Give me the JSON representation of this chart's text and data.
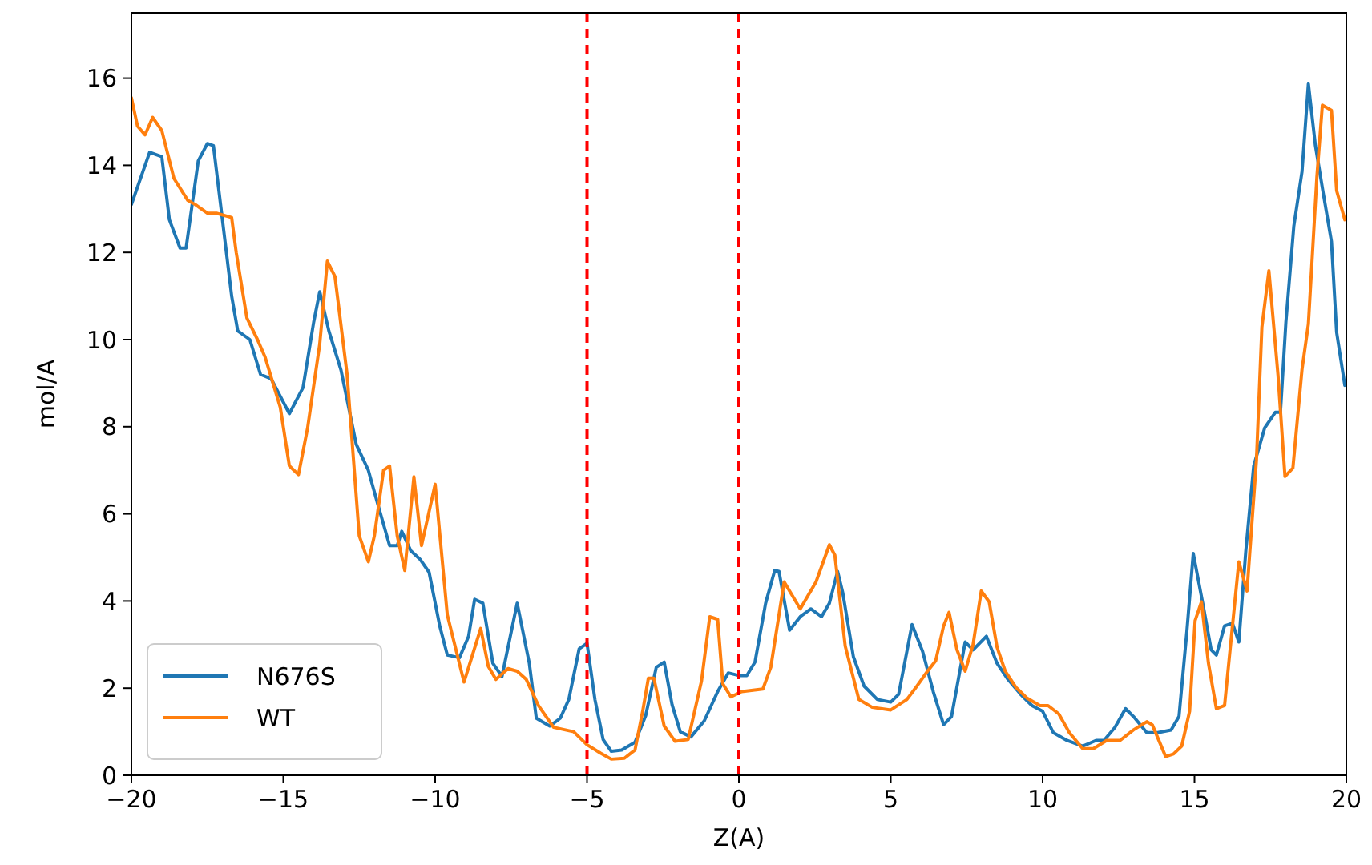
{
  "chart_data": {
    "type": "line",
    "xlabel": "Z(A)",
    "ylabel": "mol/A",
    "xlim": [
      -20,
      20
    ],
    "ylim": [
      0,
      17.5
    ],
    "xticks": [
      {
        "value": -20,
        "label": "−20"
      },
      {
        "value": -15,
        "label": "−15"
      },
      {
        "value": -10,
        "label": "−10"
      },
      {
        "value": -5,
        "label": "−5"
      },
      0,
      5,
      10,
      15,
      20
    ],
    "yticks": [
      0,
      2,
      4,
      6,
      8,
      10,
      12,
      14,
      16
    ],
    "grid": false,
    "legend": "bottom left",
    "marker": "none",
    "line_style": "solid",
    "ref_lines": [
      {
        "axis": "x",
        "value": -5,
        "color": "#ff0000",
        "line_style": "dashed"
      },
      {
        "axis": "x",
        "value": 0,
        "color": "#ff0000",
        "line_style": "dashed"
      }
    ],
    "series": [
      {
        "name": "N676S",
        "color": "#1f77b4",
        "x": [
          -20,
          -19.4,
          -19,
          -18.75,
          -18.4,
          -18.2,
          -17.8,
          -17.5,
          -17.3,
          -16.7,
          -16.5,
          -16.1,
          -15.75,
          -15.4,
          -14.8,
          -14.35,
          -14,
          -13.8,
          -13.5,
          -13.1,
          -12.6,
          -12.2,
          -11.9,
          -11.5,
          -11.25,
          -11.1,
          -10.8,
          -10.5,
          -10.2,
          -9.85,
          -9.6,
          -9.2,
          -8.9,
          -8.7,
          -8.43,
          -8.1,
          -7.8,
          -7.3,
          -6.9,
          -6.67,
          -6.23,
          -5.88,
          -5.6,
          -5.26,
          -5,
          -4.74,
          -4.47,
          -4.2,
          -3.86,
          -3.42,
          -3.07,
          -2.72,
          -2.46,
          -2.2,
          -1.93,
          -1.58,
          -1.14,
          -0.7,
          -0.35,
          0,
          0.26,
          0.53,
          0.88,
          1.18,
          1.32,
          1.67,
          2.02,
          2.37,
          2.72,
          2.98,
          3.25,
          3.42,
          3.77,
          4.12,
          4.56,
          5,
          5.26,
          5.7,
          6.05,
          6.4,
          6.74,
          7,
          7.45,
          7.71,
          8.15,
          8.5,
          8.86,
          9.3,
          9.65,
          10,
          10.35,
          10.8,
          11.32,
          11.76,
          12.02,
          12.38,
          12.73,
          12.99,
          13.43,
          13.79,
          14.23,
          14.49,
          14.75,
          14.96,
          15.28,
          15.55,
          15.72,
          15.99,
          16.25,
          16.46,
          16.69,
          16.95,
          17.31,
          17.66,
          17.83,
          18.01,
          18.27,
          18.54,
          18.75,
          18.98,
          19.24,
          19.51,
          19.68,
          19.95
        ],
        "values": [
          13.1,
          14.3,
          14.2,
          12.75,
          12.1,
          12.1,
          14.1,
          14.5,
          14.45,
          11,
          10.2,
          10,
          9.2,
          9.1,
          8.3,
          8.9,
          10.4,
          11.1,
          10.2,
          9.3,
          7.6,
          7,
          6.25,
          5.27,
          5.27,
          5.6,
          5.15,
          4.96,
          4.66,
          3.43,
          2.76,
          2.7,
          3.19,
          4.04,
          3.95,
          2.57,
          2.27,
          3.95,
          2.57,
          1.31,
          1.13,
          1.31,
          1.74,
          2.9,
          3.03,
          1.74,
          0.82,
          0.55,
          0.58,
          0.76,
          1.37,
          2.48,
          2.6,
          1.62,
          1,
          0.88,
          1.25,
          1.92,
          2.35,
          2.29,
          2.29,
          2.6,
          3.95,
          4.7,
          4.68,
          3.33,
          3.64,
          3.82,
          3.64,
          3.95,
          4.68,
          4.19,
          2.72,
          2.05,
          1.74,
          1.68,
          1.86,
          3.46,
          2.84,
          1.92,
          1.16,
          1.35,
          3.06,
          2.88,
          3.19,
          2.57,
          2.2,
          1.84,
          1.6,
          1.47,
          0.98,
          0.8,
          0.67,
          0.8,
          0.8,
          1.1,
          1.53,
          1.35,
          0.98,
          0.98,
          1.04,
          1.35,
          3.31,
          5.09,
          3.92,
          2.88,
          2.76,
          3.43,
          3.49,
          3.06,
          5.15,
          7.1,
          7.97,
          8.33,
          8.33,
          10.4,
          12.6,
          13.85,
          15.87,
          14.46,
          13.36,
          12.25,
          10.17,
          8.95
        ]
      },
      {
        "name": "WT",
        "color": "#ff7f0e",
        "x": [
          -20,
          -19.8,
          -19.55,
          -19.3,
          -19,
          -18.6,
          -18.15,
          -17.9,
          -17.5,
          -17.2,
          -16.7,
          -16.55,
          -16.2,
          -15.85,
          -15.6,
          -15.1,
          -14.8,
          -14.5,
          -14.2,
          -13.8,
          -13.55,
          -13.3,
          -12.9,
          -12.7,
          -12.5,
          -12.2,
          -12,
          -11.7,
          -11.5,
          -11.25,
          -11,
          -10.7,
          -10.45,
          -10,
          -9.6,
          -9.05,
          -8.5,
          -8.25,
          -8,
          -7.6,
          -7.3,
          -7,
          -6.6,
          -6.1,
          -5.44,
          -5,
          -4.56,
          -4.2,
          -3.77,
          -3.42,
          -3.16,
          -2.98,
          -2.8,
          -2.46,
          -2.1,
          -1.67,
          -1.23,
          -0.96,
          -0.7,
          -0.53,
          -0.26,
          0.09,
          0.79,
          1.05,
          1.49,
          2.02,
          2.54,
          2.98,
          3.16,
          3.5,
          3.95,
          4.39,
          5,
          5.53,
          5.79,
          6.21,
          6.48,
          6.74,
          6.92,
          7.18,
          7.45,
          7.71,
          7.98,
          8.24,
          8.5,
          8.77,
          9.12,
          9.47,
          9.91,
          10.18,
          10.53,
          10.88,
          11.32,
          11.67,
          12.11,
          12.55,
          12.99,
          13.43,
          13.61,
          14.05,
          14.31,
          14.58,
          14.84,
          15.02,
          15.23,
          15.46,
          15.72,
          15.99,
          16.25,
          16.46,
          16.73,
          17.04,
          17.22,
          17.45,
          17.75,
          17.98,
          18.24,
          18.54,
          18.75,
          19.03,
          19.21,
          19.51,
          19.68,
          19.95
        ],
        "values": [
          15.55,
          14.9,
          14.7,
          15.1,
          14.8,
          13.7,
          13.2,
          13.1,
          12.9,
          12.9,
          12.8,
          12,
          10.5,
          10,
          9.6,
          8.45,
          7.1,
          6.9,
          7.97,
          9.9,
          11.8,
          11.45,
          9.2,
          7.35,
          5.5,
          4.9,
          5.5,
          7,
          7.1,
          5.5,
          4.7,
          6.85,
          5.27,
          6.68,
          3.68,
          2.14,
          3.37,
          2.5,
          2.2,
          2.45,
          2.39,
          2.2,
          1.6,
          1.1,
          1,
          0.7,
          0.51,
          0.37,
          0.39,
          0.58,
          1.5,
          2.23,
          2.23,
          1.13,
          0.78,
          0.82,
          2.17,
          3.64,
          3.58,
          2.1,
          1.8,
          1.92,
          1.98,
          2.48,
          4.44,
          3.82,
          4.44,
          5.29,
          5.05,
          2.97,
          1.74,
          1.56,
          1.5,
          1.74,
          1.98,
          2.39,
          2.63,
          3.43,
          3.74,
          2.88,
          2.39,
          3,
          4.23,
          3.98,
          2.94,
          2.39,
          2.02,
          1.78,
          1.6,
          1.6,
          1.41,
          0.98,
          0.61,
          0.61,
          0.8,
          0.8,
          1.04,
          1.23,
          1.16,
          0.43,
          0.49,
          0.67,
          1.47,
          3.55,
          3.98,
          2.57,
          1.53,
          1.6,
          3.43,
          4.9,
          4.23,
          7.23,
          10.29,
          11.58,
          9.19,
          6.86,
          7.05,
          9.31,
          10.36,
          13.73,
          15.38,
          15.26,
          13.42,
          12.75
        ]
      }
    ]
  }
}
